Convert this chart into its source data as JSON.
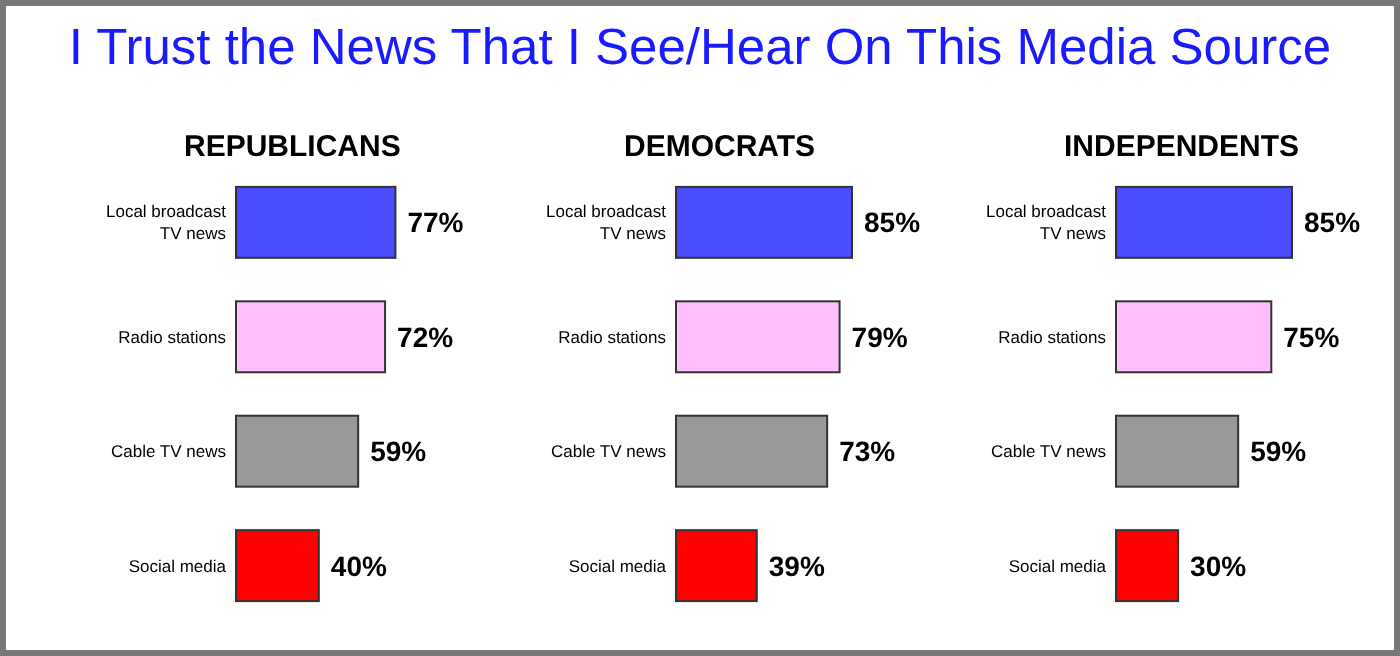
{
  "chart_data": [
    {
      "type": "bar",
      "orientation": "horizontal",
      "title": "I Trust the News That I See/Hear On This Media Source",
      "subtitle": "REPUBLICANS",
      "categories": [
        "Local broadcast TV news",
        "Radio stations",
        "Cable TV news",
        "Social media"
      ],
      "values": [
        77,
        72,
        59,
        40
      ],
      "colors": [
        "#4b4bff",
        "#ffbfff",
        "#999999",
        "#ff0000"
      ],
      "value_labels": [
        "77%",
        "72%",
        "59%",
        "40%"
      ]
    },
    {
      "type": "bar",
      "orientation": "horizontal",
      "subtitle": "DEMOCRATS",
      "categories": [
        "Local broadcast TV news",
        "Radio stations",
        "Cable TV news",
        "Social media"
      ],
      "values": [
        85,
        79,
        73,
        39
      ],
      "colors": [
        "#4b4bff",
        "#ffbfff",
        "#999999",
        "#ff0000"
      ],
      "value_labels": [
        "85%",
        "79%",
        "73%",
        "39%"
      ]
    },
    {
      "type": "bar",
      "orientation": "horizontal",
      "subtitle": "INDEPENDENTS",
      "categories": [
        "Local broadcast TV news",
        "Radio stations",
        "Cable TV news",
        "Social media"
      ],
      "values": [
        85,
        75,
        59,
        30
      ],
      "colors": [
        "#4b4bff",
        "#ffbfff",
        "#999999",
        "#ff0000"
      ],
      "value_labels": [
        "85%",
        "75%",
        "59%",
        "30%"
      ]
    }
  ]
}
